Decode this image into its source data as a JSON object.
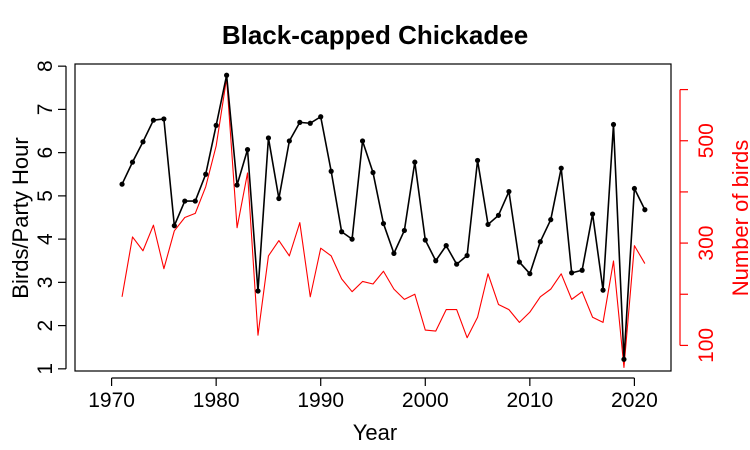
{
  "chart_data": {
    "type": "line",
    "title": "Black-capped Chickadee",
    "xlabel": "Year",
    "ylabel": "Birds/Party Hour",
    "y2label": "Number of birds",
    "xlim": [
      1966.5,
      2023.5
    ],
    "ylim": [
      0.95,
      8.05
    ],
    "y2lim": [
      50,
      650
    ],
    "xticks": [
      1970,
      1980,
      1990,
      2000,
      2010,
      2020
    ],
    "yticks": [
      1,
      2,
      3,
      4,
      5,
      6,
      7,
      8
    ],
    "y2ticks": [
      100,
      300,
      500
    ],
    "y2ticks_minor": [
      200,
      400,
      600
    ],
    "grid": false,
    "x": [
      1971,
      1972,
      1973,
      1974,
      1975,
      1976,
      1977,
      1978,
      1979,
      1980,
      1981,
      1982,
      1983,
      1984,
      1985,
      1986,
      1987,
      1988,
      1989,
      1990,
      1991,
      1992,
      1993,
      1994,
      1995,
      1996,
      1997,
      1998,
      1999,
      2000,
      2001,
      2002,
      2003,
      2004,
      2005,
      2006,
      2007,
      2008,
      2009,
      2010,
      2011,
      2012,
      2013,
      2014,
      2015,
      2016,
      2017,
      2018,
      2019,
      2020,
      2021
    ],
    "series": [
      {
        "name": "Birds/Party Hour",
        "axis": "left",
        "color": "#000000",
        "markers": true,
        "values": [
          5.27,
          5.78,
          6.25,
          6.75,
          6.78,
          4.31,
          4.88,
          4.88,
          5.5,
          6.63,
          7.79,
          5.25,
          6.07,
          2.8,
          6.34,
          4.94,
          6.27,
          6.7,
          6.68,
          6.83,
          5.57,
          4.17,
          4.0,
          6.27,
          5.54,
          4.36,
          3.67,
          4.2,
          5.78,
          3.98,
          3.5,
          3.85,
          3.42,
          3.62,
          5.82,
          4.34,
          4.55,
          5.1,
          3.47,
          3.2,
          3.94,
          4.45,
          5.64,
          3.22,
          3.28,
          4.58,
          2.82,
          6.65,
          1.22,
          5.17,
          4.68
        ]
      },
      {
        "name": "Number of birds",
        "axis": "right",
        "color": "#ff0000",
        "markers": false,
        "values": [
          195,
          312,
          285,
          335,
          250,
          324,
          350,
          358,
          410,
          490,
          622,
          330,
          437,
          120,
          275,
          305,
          275,
          340,
          195,
          290,
          275,
          230,
          205,
          225,
          220,
          245,
          210,
          190,
          200,
          130,
          128,
          170,
          170,
          115,
          155,
          240,
          180,
          170,
          145,
          165,
          195,
          210,
          240,
          190,
          205,
          155,
          145,
          265,
          57,
          295,
          260
        ]
      }
    ]
  }
}
